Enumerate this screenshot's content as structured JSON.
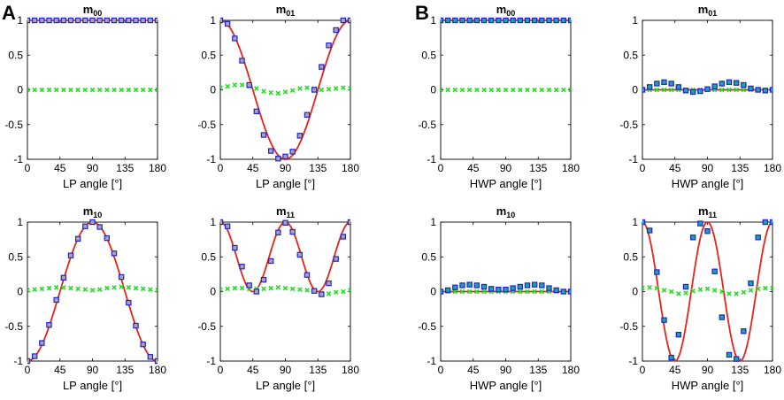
{
  "figure": {
    "panel_labels": [
      "A",
      "B"
    ],
    "colors": {
      "fit_line": "#e8221a",
      "marker_square_fill_A": "#a7a7a7",
      "marker_square_fill_B": "#18a89b",
      "marker_square_edge": "#2222dd",
      "marker_green": "#22dd22"
    }
  },
  "chart_data": [
    {
      "panel": "A",
      "id": "A-m00",
      "type": "scatter",
      "title_main": "m",
      "title_sub": "00",
      "xlabel": "LP angle [°]",
      "xlim": [
        0,
        180
      ],
      "ylim": [
        -1,
        1
      ],
      "xticks": [
        "0",
        "45",
        "90",
        "135",
        "180"
      ],
      "yticks": [
        "-1",
        "-0.5",
        "0",
        "0.5",
        "1"
      ],
      "x": [
        0,
        10,
        20,
        30,
        40,
        50,
        60,
        70,
        80,
        90,
        100,
        110,
        120,
        130,
        140,
        150,
        160,
        170,
        180
      ],
      "measured": [
        1,
        1,
        1,
        1,
        1,
        1,
        1,
        1,
        1,
        1,
        1,
        1,
        1,
        1,
        1,
        1,
        1,
        1,
        1
      ],
      "deviation": [
        0,
        0,
        0,
        0,
        0,
        0,
        0,
        0,
        0,
        0,
        0,
        0,
        0,
        0,
        0,
        0,
        0,
        0,
        0
      ],
      "theory": "1"
    },
    {
      "panel": "A",
      "id": "A-m01",
      "type": "scatter",
      "title_main": "m",
      "title_sub": "01",
      "xlabel": "LP angle [°]",
      "xlim": [
        0,
        180
      ],
      "ylim": [
        -1,
        1
      ],
      "xticks": [
        "0",
        "45",
        "90",
        "135",
        "180"
      ],
      "yticks": [
        "-1",
        "-0.5",
        "0",
        "0.5",
        "1"
      ],
      "x": [
        0,
        10,
        20,
        30,
        40,
        50,
        60,
        70,
        80,
        90,
        100,
        110,
        120,
        130,
        140,
        150,
        160,
        170,
        180
      ],
      "measured": [
        1.0,
        0.95,
        0.74,
        0.42,
        0.07,
        -0.31,
        -0.65,
        -0.88,
        -0.99,
        -0.96,
        -0.89,
        -0.66,
        -0.36,
        0.0,
        0.33,
        0.64,
        0.86,
        1.0,
        1.0
      ],
      "deviation": [
        0.03,
        0.05,
        0.07,
        0.07,
        0.05,
        0.02,
        -0.02,
        -0.04,
        -0.05,
        -0.03,
        -0.01,
        0.02,
        0.03,
        0.02,
        0.0,
        0.01,
        0.02,
        0.03,
        0.02
      ],
      "theory": "cos2"
    },
    {
      "panel": "A",
      "id": "A-m10",
      "type": "scatter",
      "title_main": "m",
      "title_sub": "10",
      "xlabel": "LP angle [°]",
      "xlim": [
        0,
        180
      ],
      "ylim": [
        -1,
        1
      ],
      "xticks": [
        "0",
        "45",
        "90",
        "135",
        "180"
      ],
      "yticks": [
        "-1",
        "-0.5",
        "0",
        "0.5",
        "1"
      ],
      "x": [
        0,
        10,
        20,
        30,
        40,
        50,
        60,
        70,
        80,
        90,
        100,
        110,
        120,
        130,
        140,
        150,
        160,
        170,
        180
      ],
      "measured": [
        -1.0,
        -0.93,
        -0.74,
        -0.48,
        -0.12,
        0.2,
        0.52,
        0.76,
        0.94,
        1.0,
        0.93,
        0.77,
        0.55,
        0.21,
        -0.16,
        -0.49,
        -0.76,
        -0.94,
        -1.0
      ],
      "deviation": [
        0.02,
        0.03,
        0.04,
        0.05,
        0.06,
        0.06,
        0.05,
        0.04,
        0.03,
        0.02,
        0.03,
        0.05,
        0.06,
        0.07,
        0.06,
        0.05,
        0.04,
        0.03,
        0.02
      ],
      "theory": "-cos2"
    },
    {
      "panel": "A",
      "id": "A-m11",
      "type": "scatter",
      "title_main": "m",
      "title_sub": "11",
      "xlabel": "LP angle [°]",
      "xlim": [
        0,
        180
      ],
      "ylim": [
        -1,
        1
      ],
      "xticks": [
        "0",
        "45",
        "90",
        "135",
        "180"
      ],
      "yticks": [
        "-1",
        "-0.5",
        "0",
        "0.5",
        "1"
      ],
      "x": [
        0,
        10,
        20,
        30,
        40,
        50,
        60,
        70,
        80,
        90,
        100,
        110,
        120,
        130,
        140,
        150,
        160,
        170,
        180
      ],
      "measured": [
        1.0,
        0.94,
        0.63,
        0.36,
        0.09,
        0.0,
        0.17,
        0.44,
        0.85,
        0.99,
        0.86,
        0.53,
        0.24,
        0.01,
        -0.04,
        0.12,
        0.47,
        0.79,
        1.0
      ],
      "deviation": [
        0.03,
        0.04,
        0.05,
        0.05,
        0.04,
        0.04,
        0.04,
        0.05,
        0.06,
        0.05,
        0.04,
        0.03,
        0.02,
        0.0,
        -0.02,
        -0.03,
        -0.01,
        0.0,
        0.02
      ],
      "theory": "cos^2"
    },
    {
      "panel": "B",
      "id": "B-m00",
      "type": "scatter",
      "title_main": "m",
      "title_sub": "00",
      "xlabel": "HWP angle [°]",
      "xlim": [
        0,
        180
      ],
      "ylim": [
        -1,
        1
      ],
      "xticks": [
        "0",
        "45",
        "90",
        "135",
        "180"
      ],
      "yticks": [
        "-1",
        "-0.5",
        "0",
        "0.5",
        "1"
      ],
      "x": [
        0,
        10,
        20,
        30,
        40,
        50,
        60,
        70,
        80,
        90,
        100,
        110,
        120,
        130,
        140,
        150,
        160,
        170,
        180
      ],
      "measured": [
        1,
        1,
        1,
        1,
        1,
        1,
        1,
        1,
        1,
        1,
        1,
        1,
        1,
        1,
        1,
        1,
        1,
        1,
        1
      ],
      "deviation": [
        0,
        0,
        0,
        0,
        0,
        0,
        0,
        0,
        0,
        0,
        0,
        0,
        0,
        0,
        0,
        0,
        0,
        0,
        0
      ],
      "theory": "1"
    },
    {
      "panel": "B",
      "id": "B-m01",
      "type": "scatter",
      "title_main": "m",
      "title_sub": "01",
      "xlabel": "HWP angle [°]",
      "xlim": [
        0,
        180
      ],
      "ylim": [
        -1,
        1
      ],
      "xticks": [
        "0",
        "45",
        "90",
        "135",
        "180"
      ],
      "yticks": [
        "-1",
        "-0.5",
        "0",
        "0.5",
        "1"
      ],
      "x": [
        0,
        10,
        20,
        30,
        40,
        50,
        60,
        70,
        80,
        90,
        100,
        110,
        120,
        130,
        140,
        150,
        160,
        170,
        180
      ],
      "measured": [
        0.0,
        0.04,
        0.09,
        0.11,
        0.09,
        0.04,
        -0.01,
        -0.03,
        -0.02,
        0.01,
        0.05,
        0.09,
        0.11,
        0.1,
        0.07,
        0.02,
        0.0,
        -0.01,
        0.0
      ],
      "deviation": [
        0.0,
        0.0,
        0.0,
        0.0,
        0.0,
        0.0,
        0.0,
        0.0,
        0.0,
        0.0,
        0.0,
        0.0,
        0.0,
        0.0,
        0.0,
        0.0,
        0.0,
        0.0,
        0.0
      ],
      "theory": "0"
    },
    {
      "panel": "B",
      "id": "B-m10",
      "type": "scatter",
      "title_main": "m",
      "title_sub": "10",
      "xlabel": "HWP angle [°]",
      "xlim": [
        0,
        180
      ],
      "ylim": [
        -1,
        1
      ],
      "xticks": [
        "0",
        "45",
        "90",
        "135",
        "180"
      ],
      "yticks": [
        "-1",
        "-0.5",
        "0",
        "0.5",
        "1"
      ],
      "x": [
        0,
        10,
        20,
        30,
        40,
        50,
        60,
        70,
        80,
        90,
        100,
        110,
        120,
        130,
        140,
        150,
        160,
        170,
        180
      ],
      "measured": [
        0.0,
        0.02,
        0.06,
        0.09,
        0.1,
        0.09,
        0.07,
        0.04,
        0.03,
        0.03,
        0.05,
        0.07,
        0.09,
        0.1,
        0.09,
        0.05,
        0.02,
        0.0,
        0.0
      ],
      "deviation": [
        0.0,
        0.0,
        0.0,
        0.0,
        0.0,
        0.0,
        0.0,
        0.0,
        0.0,
        0.0,
        0.0,
        0.0,
        0.0,
        0.0,
        0.0,
        0.0,
        0.0,
        0.0,
        0.0
      ],
      "theory": "0"
    },
    {
      "panel": "B",
      "id": "B-m11",
      "type": "scatter",
      "title_main": "m",
      "title_sub": "11",
      "xlabel": "HWP angle [°]",
      "xlim": [
        0,
        180
      ],
      "ylim": [
        -1,
        1
      ],
      "xticks": [
        "0",
        "45",
        "90",
        "135",
        "180"
      ],
      "yticks": [
        "-1",
        "-0.5",
        "0",
        "0.5",
        "1"
      ],
      "x": [
        0,
        10,
        20,
        30,
        40,
        50,
        60,
        70,
        80,
        90,
        100,
        110,
        120,
        130,
        140,
        150,
        160,
        170,
        180
      ],
      "measured": [
        1.0,
        0.88,
        0.28,
        -0.41,
        -0.95,
        -0.62,
        0.07,
        0.78,
        0.98,
        0.87,
        0.29,
        -0.37,
        -0.91,
        -0.97,
        -0.57,
        0.12,
        0.78,
        1.0,
        1.0
      ],
      "deviation": [
        0.05,
        0.06,
        0.05,
        0.02,
        0.0,
        -0.03,
        -0.02,
        0.01,
        0.03,
        0.04,
        0.02,
        0.0,
        -0.03,
        -0.03,
        -0.01,
        0.02,
        0.04,
        0.05,
        0.05
      ],
      "theory": "cos4"
    }
  ]
}
